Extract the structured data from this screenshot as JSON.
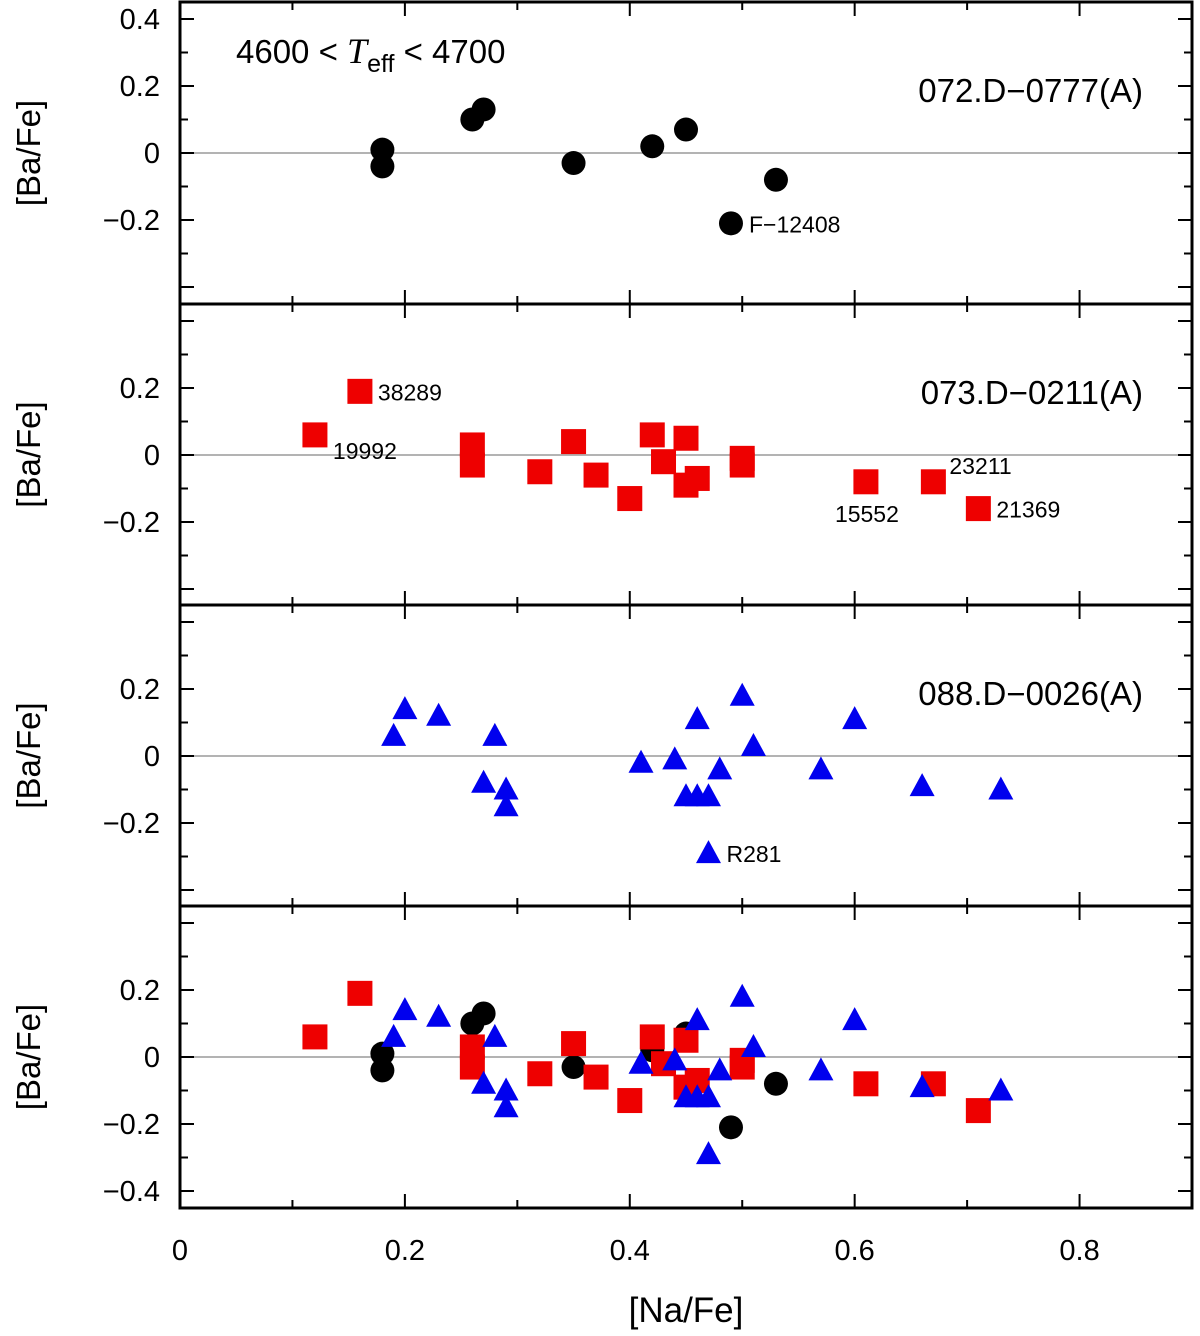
{
  "chart_data": {
    "type": "scatter",
    "xlabel": "[Na/Fe]",
    "xlim": [
      0,
      0.9
    ],
    "x_ticks": [
      {
        "v": 0,
        "label": "0"
      },
      {
        "v": 0.2,
        "label": "0.2"
      },
      {
        "v": 0.4,
        "label": "0.4"
      },
      {
        "v": 0.6,
        "label": "0.6"
      },
      {
        "v": 0.8,
        "label": "0.8"
      }
    ],
    "ylabel": "[Ba/Fe]",
    "temperature_range": {
      "low": "4600",
      "high": "4700",
      "symbol": "T",
      "subscript": "eff"
    },
    "colors": {
      "circle": "#000000",
      "square": "#ee0000",
      "triangle": "#0000ee",
      "zero_line": "#9a9a9a"
    },
    "panels": [
      {
        "run_label": "072.D−0777(A)",
        "ylim": [
          -0.4,
          0.4
        ],
        "y_ticks": [
          {
            "v": 0.4,
            "label": "0.4"
          },
          {
            "v": 0.2,
            "label": "0.2"
          },
          {
            "v": 0,
            "label": "0"
          },
          {
            "v": -0.2,
            "label": "−0.2"
          }
        ],
        "series": [
          {
            "marker": "circle",
            "color": "#000000",
            "points": [
              {
                "x": 0.18,
                "y": 0.01
              },
              {
                "x": 0.18,
                "y": -0.04
              },
              {
                "x": 0.26,
                "y": 0.1
              },
              {
                "x": 0.27,
                "y": 0.13
              },
              {
                "x": 0.35,
                "y": -0.03
              },
              {
                "x": 0.42,
                "y": 0.02
              },
              {
                "x": 0.45,
                "y": 0.07
              },
              {
                "x": 0.53,
                "y": -0.08
              },
              {
                "x": 0.49,
                "y": -0.21
              }
            ]
          }
        ],
        "annotations": [
          {
            "text": "F−12408",
            "x": 0.49,
            "y": -0.21,
            "anchor": "right"
          }
        ]
      },
      {
        "run_label": "073.D−0211(A)",
        "ylim": [
          -0.4,
          0.4
        ],
        "y_ticks": [
          {
            "v": 0.2,
            "label": "0.2"
          },
          {
            "v": 0,
            "label": "0"
          },
          {
            "v": -0.2,
            "label": "−0.2"
          }
        ],
        "series": [
          {
            "marker": "square",
            "color": "#ee0000",
            "points": [
              {
                "x": 0.16,
                "y": 0.19
              },
              {
                "x": 0.12,
                "y": 0.06
              },
              {
                "x": 0.26,
                "y": 0.03
              },
              {
                "x": 0.26,
                "y": -0.03
              },
              {
                "x": 0.32,
                "y": -0.05
              },
              {
                "x": 0.35,
                "y": 0.04
              },
              {
                "x": 0.37,
                "y": -0.06
              },
              {
                "x": 0.4,
                "y": -0.13
              },
              {
                "x": 0.42,
                "y": 0.06
              },
              {
                "x": 0.43,
                "y": -0.02
              },
              {
                "x": 0.45,
                "y": 0.05
              },
              {
                "x": 0.45,
                "y": -0.09
              },
              {
                "x": 0.46,
                "y": -0.07
              },
              {
                "x": 0.5,
                "y": -0.01
              },
              {
                "x": 0.5,
                "y": -0.03
              },
              {
                "x": 0.61,
                "y": -0.08
              },
              {
                "x": 0.67,
                "y": -0.08
              },
              {
                "x": 0.71,
                "y": -0.16
              }
            ]
          }
        ],
        "annotations": [
          {
            "text": "38289",
            "x": 0.16,
            "y": 0.19,
            "anchor": "right"
          },
          {
            "text": "19992",
            "x": 0.12,
            "y": 0.06,
            "anchor": "right-below"
          },
          {
            "text": "15552",
            "x": 0.61,
            "y": -0.08,
            "anchor": "below-left"
          },
          {
            "text": "23211",
            "x": 0.67,
            "y": -0.08,
            "anchor": "right-above"
          },
          {
            "text": "21369",
            "x": 0.71,
            "y": -0.16,
            "anchor": "right"
          }
        ]
      },
      {
        "run_label": "088.D−0026(A)",
        "ylim": [
          -0.4,
          0.4
        ],
        "y_ticks": [
          {
            "v": 0.2,
            "label": "0.2"
          },
          {
            "v": 0,
            "label": "0"
          },
          {
            "v": -0.2,
            "label": "−0.2"
          }
        ],
        "series": [
          {
            "marker": "triangle",
            "color": "#0000ee",
            "points": [
              {
                "x": 0.19,
                "y": 0.06
              },
              {
                "x": 0.2,
                "y": 0.14
              },
              {
                "x": 0.23,
                "y": 0.12
              },
              {
                "x": 0.27,
                "y": -0.08
              },
              {
                "x": 0.28,
                "y": 0.06
              },
              {
                "x": 0.29,
                "y": -0.1
              },
              {
                "x": 0.29,
                "y": -0.15
              },
              {
                "x": 0.41,
                "y": -0.02
              },
              {
                "x": 0.44,
                "y": -0.01
              },
              {
                "x": 0.45,
                "y": -0.12
              },
              {
                "x": 0.46,
                "y": -0.12
              },
              {
                "x": 0.46,
                "y": 0.11
              },
              {
                "x": 0.47,
                "y": -0.12
              },
              {
                "x": 0.48,
                "y": -0.04
              },
              {
                "x": 0.47,
                "y": -0.29
              },
              {
                "x": 0.5,
                "y": 0.18
              },
              {
                "x": 0.51,
                "y": 0.03
              },
              {
                "x": 0.57,
                "y": -0.04
              },
              {
                "x": 0.6,
                "y": 0.11
              },
              {
                "x": 0.66,
                "y": -0.09
              },
              {
                "x": 0.73,
                "y": -0.1
              }
            ]
          }
        ],
        "annotations": [
          {
            "text": "R281",
            "x": 0.47,
            "y": -0.29,
            "anchor": "right"
          }
        ]
      },
      {
        "run_label": "",
        "ylim": [
          -0.45,
          0.4
        ],
        "y_ticks": [
          {
            "v": 0.2,
            "label": "0.2"
          },
          {
            "v": 0,
            "label": "0"
          },
          {
            "v": -0.2,
            "label": "−0.2"
          },
          {
            "v": -0.4,
            "label": "−0.4"
          }
        ],
        "combined": true,
        "series": [],
        "annotations": []
      }
    ]
  }
}
